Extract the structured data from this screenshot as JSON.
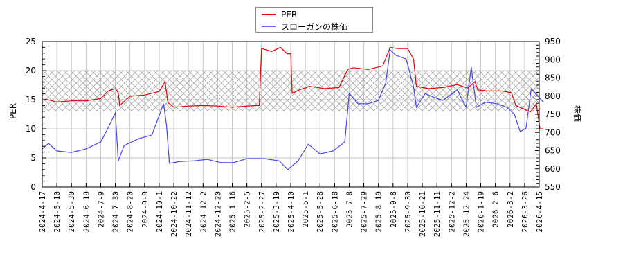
{
  "legend": {
    "items": [
      {
        "label": "PER",
        "color": "#e00000"
      },
      {
        "label": "スローガンの株価",
        "color": "#4444ee"
      }
    ]
  },
  "axes": {
    "left_label": "PER",
    "right_label": "株価"
  },
  "chart_data": {
    "type": "line",
    "title": "",
    "xlabel": "",
    "ylabel": "PER",
    "y2label": "株価",
    "ylim": [
      0,
      25
    ],
    "y2lim": [
      550,
      950
    ],
    "yticks": [
      0,
      5,
      10,
      15,
      20,
      25
    ],
    "y2ticks": [
      550,
      600,
      650,
      700,
      750,
      800,
      850,
      900,
      950
    ],
    "grid": true,
    "legend_position": "top-center",
    "shaded_band": {
      "axis": "left",
      "from": 13,
      "to": 20,
      "pattern": "cross-hatch"
    },
    "x_tick_labels": [
      "2024-4-17",
      "2024-5-10",
      "2024-5-30",
      "2024-6-19",
      "2024-7-9",
      "2024-7-30",
      "2024-8-20",
      "2024-9-9",
      "2024-10-1",
      "2024-10-22",
      "2024-11-12",
      "2024-12-2",
      "2024-12-20",
      "2025-1-16",
      "2025-2-5",
      "2025-2-27",
      "2025-3-19",
      "2025-4-10",
      "2025-5-1",
      "2025-5-28",
      "2025-6-18",
      "2025-7-8",
      "2025-7-29",
      "2025-8-19",
      "2025-9-8",
      "2025-9-30",
      "2025-10-21",
      "2025-11-11",
      "2025-12-2",
      "2025-12-24",
      "2026-1-19",
      "2026-2-6",
      "2026-3-2",
      "2026-3-26",
      "2026-4-15"
    ],
    "series": [
      {
        "name": "PER",
        "axis": "left",
        "color": "#e00000",
        "x": [
          0,
          0.24,
          1,
          2,
          3,
          4,
          4.5,
          5,
          5.2,
          5.3,
          6,
          7,
          8,
          8.4,
          8.6,
          9,
          10,
          11,
          12,
          13,
          14,
          14.7,
          14.85,
          15,
          15.7,
          16.3,
          16.75,
          17,
          17.1,
          17.6,
          18.3,
          19.3,
          20.3,
          20.9,
          21.3,
          22.3,
          23.3,
          23.8,
          24.3,
          25,
          25.4,
          25.6,
          26.4,
          27.4,
          28.4,
          29.1,
          29.6,
          29.8,
          30.4,
          31.4,
          32.1,
          32.4,
          33.4,
          33.8,
          34.05,
          34.3
        ],
        "values": [
          14.9,
          15.1,
          14.6,
          14.8,
          14.8,
          15.2,
          16.5,
          16.9,
          16.2,
          14.0,
          15.6,
          15.8,
          16.4,
          18.1,
          14.5,
          13.7,
          13.9,
          14.0,
          13.9,
          13.7,
          13.9,
          14.0,
          14.0,
          23.8,
          23.3,
          24.0,
          22.9,
          22.9,
          16.1,
          16.7,
          17.3,
          16.9,
          17.1,
          20.2,
          20.5,
          20.2,
          20.8,
          24.0,
          23.8,
          23.8,
          22.0,
          17.3,
          16.9,
          17.1,
          17.6,
          17.0,
          18.1,
          16.7,
          16.5,
          16.5,
          16.2,
          14.0,
          12.9,
          14.3,
          10.0,
          10.0
        ]
      },
      {
        "name": "スローガンの株価",
        "axis": "right",
        "color": "#4444ee",
        "x": [
          0,
          0.43,
          1,
          2,
          3,
          4,
          4.5,
          5,
          5.2,
          5.6,
          6.6,
          7.5,
          8.3,
          8.5,
          8.7,
          9.4,
          10.4,
          11.3,
          12.2,
          13.1,
          14,
          15.2,
          16.2,
          16.8,
          17.5,
          18.2,
          19,
          19.9,
          20.7,
          21,
          21.6,
          22.3,
          23,
          23.5,
          23.8,
          24.2,
          24.9,
          25.4,
          25.6,
          26.2,
          26.7,
          27.4,
          28.4,
          29,
          29.35,
          29.7,
          30.3,
          31.1,
          31.8,
          32.3,
          32.7,
          33.1,
          33.45,
          34.3
        ],
        "values": [
          655,
          670,
          649,
          645,
          655,
          674,
          712,
          754,
          622,
          664,
          683,
          693,
          779,
          720,
          615,
          620,
          622,
          626,
          617,
          617,
          628,
          628,
          622,
          598,
          622,
          668,
          641,
          649,
          674,
          807,
          779,
          779,
          788,
          836,
          927,
          912,
          902,
          826,
          769,
          807,
          798,
          788,
          817,
          769,
          880,
          769,
          783,
          779,
          769,
          750,
          702,
          712,
          820,
          783
        ]
      }
    ]
  }
}
